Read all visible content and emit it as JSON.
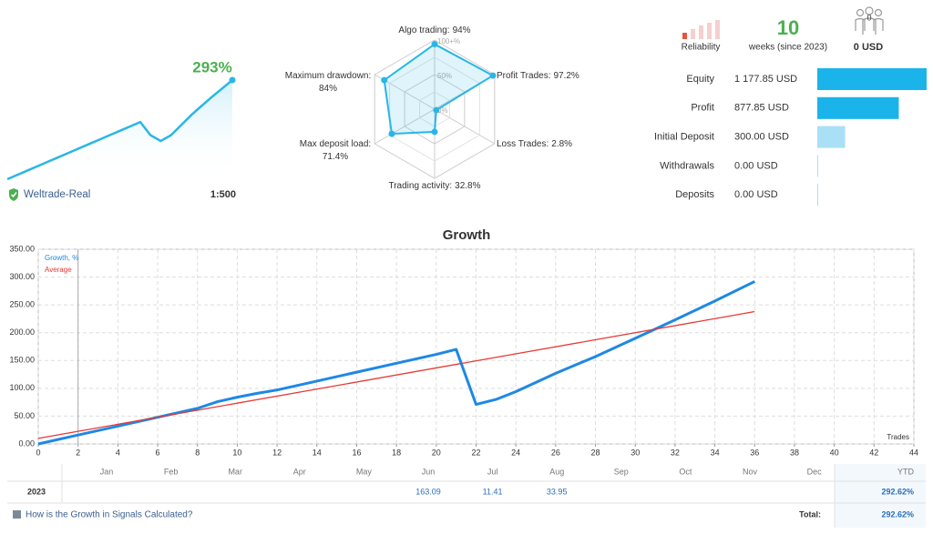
{
  "summary": {
    "growth_label": "293%",
    "sparkline": {
      "type": "line",
      "color": "#29b6e6",
      "values": [
        0,
        13,
        26,
        39,
        52,
        65,
        78,
        91,
        104,
        117,
        130,
        143,
        156,
        169,
        130,
        113,
        130,
        160,
        190,
        217,
        243,
        268,
        293
      ]
    },
    "account": "Weltrade-Real",
    "leverage": "1:500"
  },
  "radar": {
    "type": "radar",
    "color": "#29b6e6",
    "rlim": [
      0,
      100
    ],
    "rticks": [
      {
        "value": 100,
        "label": "100+%"
      },
      {
        "value": 50,
        "label": "50%"
      },
      {
        "value": 0,
        "label": "0%"
      }
    ],
    "axes": [
      {
        "name": "Algo trading:",
        "value": 94,
        "value_label": "94%"
      },
      {
        "name": "Profit Trades:",
        "value": 97.2,
        "value_label": "97.2%"
      },
      {
        "name": "Loss Trades:",
        "value": 2.8,
        "value_label": "2.8%"
      },
      {
        "name": "Trading activity:",
        "value": 32.8,
        "value_label": "32.8%"
      },
      {
        "name": "Max deposit load:",
        "value": 71.4,
        "value_label": "71.4%"
      },
      {
        "name": "Maximum drawdown:",
        "value": 84,
        "value_label": "84%"
      }
    ]
  },
  "stats": {
    "reliability": "Reliability",
    "weeks": 10,
    "weeks_label": "weeks (since 2023)",
    "subscribers": 0,
    "subscribers_funds": "0 USD"
  },
  "balance": {
    "type": "bar",
    "categories": [
      "Equity",
      "Profit",
      "Initial Deposit",
      "Withdrawals",
      "Deposits"
    ],
    "values": [
      1177.85,
      877.85,
      300,
      0,
      0
    ],
    "value_labels": [
      "1 177.85 USD",
      "877.85 USD",
      "300.00 USD",
      "0.00 USD",
      "0.00 USD"
    ],
    "colors": [
      "#1ab4ea",
      "#1ab4ea",
      "#a9e0f6",
      "#a9e0f6",
      "#a9e0f6"
    ]
  },
  "chart_data": {
    "type": "line",
    "title": "Growth",
    "x_label": "Trades",
    "xlim": [
      0,
      44
    ],
    "xticks": [
      0,
      2,
      4,
      6,
      8,
      10,
      12,
      14,
      16,
      18,
      20,
      22,
      24,
      26,
      28,
      30,
      32,
      34,
      36,
      38,
      40,
      42,
      44
    ],
    "ylim": [
      0,
      350
    ],
    "yticks": [
      {
        "value": 0,
        "label": "0.00"
      },
      {
        "value": 50,
        "label": "50.00"
      },
      {
        "value": 100,
        "label": "100.00"
      },
      {
        "value": 150,
        "label": "150.00"
      },
      {
        "value": 200,
        "label": "200.00"
      },
      {
        "value": 250,
        "label": "250.00"
      },
      {
        "value": 300,
        "label": "300.00"
      },
      {
        "value": 350,
        "label": "350.00"
      }
    ],
    "grid": true,
    "legend": "top-left",
    "series": [
      {
        "name": "Growth, %",
        "color": "#1e88e5",
        "x": [
          0,
          2,
          4,
          6,
          8,
          9,
          10,
          11,
          12,
          14,
          16,
          18,
          20,
          21,
          22,
          23,
          24,
          26,
          27,
          28,
          30,
          32,
          34,
          36
        ],
        "values": [
          0,
          16,
          32,
          48,
          64,
          76,
          84,
          91,
          97,
          113,
          129,
          145,
          161,
          170,
          71,
          80,
          94,
          127,
          142,
          157,
          190,
          223,
          257,
          292
        ]
      },
      {
        "name": "Average",
        "color": "#e53935",
        "x": [
          0,
          36
        ],
        "values": [
          10,
          238
        ]
      }
    ]
  },
  "table": {
    "months": [
      "Jan",
      "Feb",
      "Mar",
      "Apr",
      "May",
      "Jun",
      "Jul",
      "Aug",
      "Sep",
      "Oct",
      "Nov",
      "Dec"
    ],
    "ytd_header": "YTD",
    "rows": [
      {
        "year": "2023",
        "values": [
          null,
          null,
          null,
          null,
          null,
          163.09,
          11.41,
          33.95,
          null,
          null,
          null,
          null
        ],
        "ytd": "292.62%"
      }
    ],
    "total_label": "Total:",
    "total": "292.62%",
    "link": "How is the Growth in Signals Calculated?"
  }
}
